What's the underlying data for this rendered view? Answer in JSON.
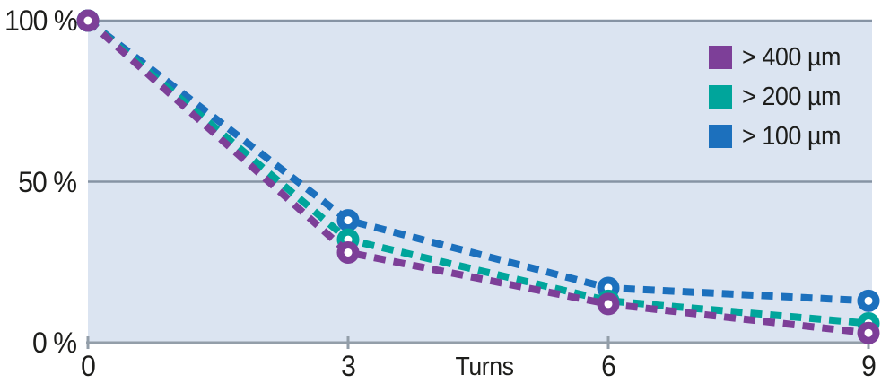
{
  "chart_data": {
    "type": "line",
    "title": "",
    "xlabel": "Turns",
    "ylabel": "",
    "x": [
      0,
      3,
      6,
      9
    ],
    "x_tick_labels": [
      "0",
      "3",
      "6",
      "9"
    ],
    "y_tick_labels": [
      "100 %",
      "50 %",
      "0 %"
    ],
    "y_tick_values": [
      100,
      50,
      0
    ],
    "xlim": [
      0,
      9
    ],
    "ylim": [
      0,
      100
    ],
    "grid": "horizontal",
    "line_style": "dashed",
    "marker": "open-circle",
    "legend_position": "top-right",
    "plot_bg": "#dbe4f1",
    "grid_color": "#8693a4",
    "axis_color": "#939ea9",
    "text_color": "#1d1d1b",
    "series": [
      {
        "name": "> 400 µm",
        "color": "#7d3f98",
        "values": [
          100,
          28,
          12,
          3
        ]
      },
      {
        "name": "> 200 µm",
        "color": "#00a59b",
        "values": [
          100,
          32,
          13,
          6
        ]
      },
      {
        "name": "> 100 µm",
        "color": "#1c70bd",
        "values": [
          100,
          38,
          17,
          13
        ]
      }
    ]
  }
}
